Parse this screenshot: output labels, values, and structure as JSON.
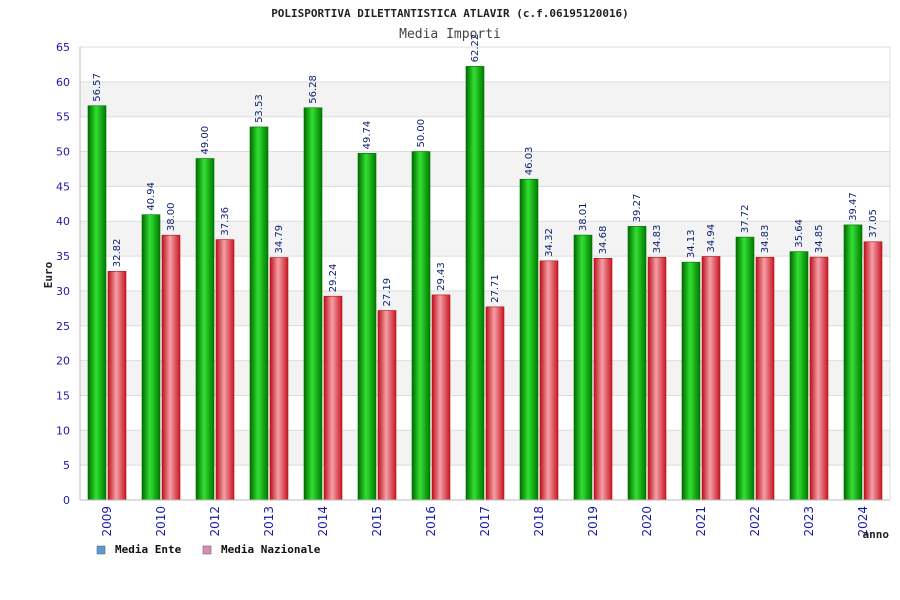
{
  "chart_data": {
    "type": "bar",
    "title": "POLISPORTIVA DILETTANTISTICA ATLAVIR (c.f.06195120016)",
    "subtitle": "Media Importi",
    "ylabel": "Euro",
    "xlabel": "anno",
    "ylim": [
      0,
      65
    ],
    "yticks": [
      0,
      5,
      10,
      15,
      20,
      25,
      30,
      35,
      40,
      45,
      50,
      55,
      60,
      65
    ],
    "grid": true,
    "legend_position": "bottom-left",
    "categories": [
      "2009",
      "2010",
      "2012",
      "2013",
      "2014",
      "2015",
      "2016",
      "2017",
      "2018",
      "2019",
      "2020",
      "2021",
      "2022",
      "2023",
      "2024"
    ],
    "series": [
      {
        "name": "Media Ente",
        "color": "#00b000",
        "legend_color": "#5b9bd5",
        "values": [
          56.57,
          40.94,
          49.0,
          53.53,
          56.28,
          49.74,
          50.0,
          62.22,
          46.03,
          38.01,
          39.27,
          34.13,
          37.72,
          35.64,
          39.47
        ],
        "labels": [
          "56.57",
          "40.94",
          "49.00",
          "53.53",
          "56.28",
          "49.74",
          "50.00",
          "62.22",
          "46.03",
          "38.01",
          "39.27",
          "34.13",
          "37.72",
          "35.64",
          "39.47"
        ]
      },
      {
        "name": "Media Nazionale",
        "color": "#e8303a",
        "legend_color": "#d98bb5",
        "values": [
          32.82,
          38.0,
          37.36,
          34.79,
          29.24,
          27.19,
          29.43,
          27.71,
          34.32,
          34.68,
          34.83,
          34.94,
          34.83,
          34.85,
          37.05
        ],
        "labels": [
          "32.82",
          "38.00",
          "37.36",
          "34.79",
          "29.24",
          "27.19",
          "29.43",
          "27.71",
          "34.32",
          "34.68",
          "34.83",
          "34.94",
          "34.83",
          "34.85",
          "37.05"
        ]
      }
    ]
  }
}
